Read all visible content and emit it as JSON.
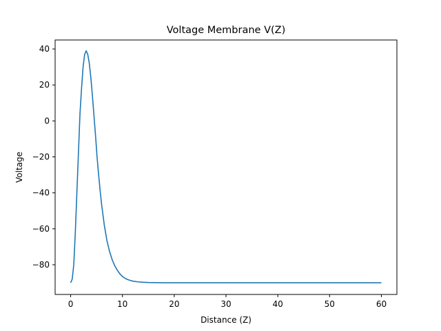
{
  "chart_data": {
    "type": "line",
    "title": "Voltage Membrane V(Z)",
    "xlabel": "Distance (Z)",
    "ylabel": "Voltage",
    "xlim": [
      -3,
      63
    ],
    "ylim": [
      -96.5,
      45
    ],
    "x_ticks": [
      0,
      10,
      20,
      30,
      40,
      50,
      60
    ],
    "y_ticks": [
      -80,
      -60,
      -40,
      -20,
      0,
      20,
      40
    ],
    "x_tick_labels": [
      "0",
      "10",
      "20",
      "30",
      "40",
      "50",
      "60"
    ],
    "y_tick_labels": [
      "−80",
      "−60",
      "−40",
      "−20",
      "0",
      "20",
      "40"
    ],
    "grid": false,
    "line_color": "#1f77b4",
    "series": [
      {
        "x": [
          0,
          0.3,
          0.6,
          0.9,
          1.2,
          1.5,
          1.8,
          2.1,
          2.4,
          2.7,
          3.0,
          3.3,
          3.6,
          3.9,
          4.2,
          4.5,
          4.8,
          5.1,
          5.4,
          5.7,
          6.0,
          6.5,
          7.0,
          7.5,
          8.0,
          8.5,
          9.0,
          9.5,
          10,
          10.5,
          11,
          11.5,
          12,
          13,
          14,
          15,
          16,
          18,
          20,
          25,
          30,
          35,
          40,
          45,
          50,
          55,
          60
        ],
        "y": [
          -90,
          -88,
          -80,
          -62,
          -40,
          -18,
          4,
          18,
          30,
          37,
          39,
          37,
          32,
          24,
          14,
          3,
          -8,
          -20,
          -30,
          -39,
          -47,
          -58,
          -66.5,
          -72.5,
          -77,
          -80.5,
          -83,
          -85,
          -86.5,
          -87.5,
          -88.2,
          -88.7,
          -89.1,
          -89.5,
          -89.7,
          -89.85,
          -89.9,
          -90,
          -90,
          -90,
          -90,
          -90,
          -90,
          -90,
          -90,
          -90,
          -90
        ]
      }
    ]
  }
}
